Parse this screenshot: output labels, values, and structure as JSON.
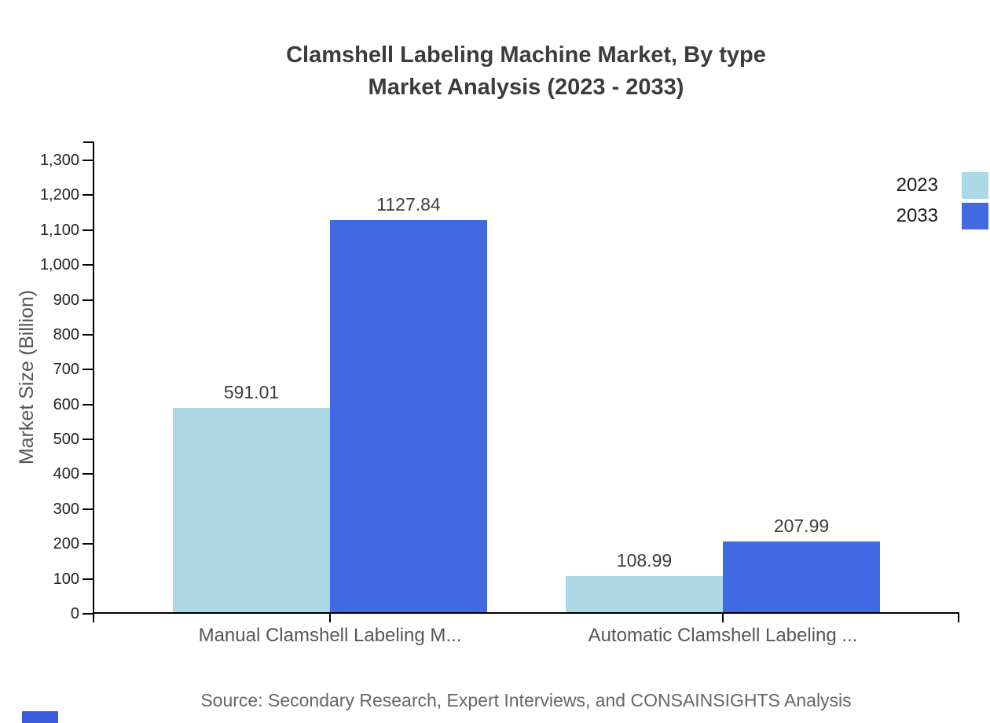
{
  "title": {
    "line1": "Clamshell Labeling Machine Market, By type",
    "line2": "Market Analysis (2023 - 2033)"
  },
  "source_note": "Source: Secondary Research, Expert Interviews, and CONSAINSIGHTS Analysis",
  "colors": {
    "series_2023": "#ADD8E6",
    "series_2033": "#4169E1",
    "axis": "#000000",
    "title_text": "#3C3C3C",
    "category_text": "#555555",
    "tick_text": "#222222",
    "source_text": "#666666",
    "legend_text": "#1A1A1A",
    "logo_blue": "#3B5BDB"
  },
  "legend": {
    "items": [
      {
        "label": "2023",
        "color": "#ADD8E6"
      },
      {
        "label": "2033",
        "color": "#4169E1"
      }
    ]
  },
  "chart_data": {
    "type": "bar",
    "title": "Clamshell Labeling Machine Market, By type Market Analysis (2023 - 2033)",
    "categories": [
      "Manual Clamshell Labeling M...",
      "Automatic Clamshell Labeling ..."
    ],
    "series": [
      {
        "name": "2023",
        "color": "#ADD8E6",
        "values": [
          591.01,
          108.99
        ]
      },
      {
        "name": "2033",
        "color": "#4169E1",
        "values": [
          1127.84,
          207.99
        ]
      }
    ],
    "value_labels": [
      "591.01",
      "1127.84",
      "108.99",
      "207.99"
    ],
    "xlabel": "",
    "ylabel": "Market Size (Billion)",
    "ylim": [
      0,
      1300
    ],
    "ytick_step": 100,
    "ytick_format": "thousands-comma",
    "grid": false,
    "legend_position": "top-right"
  }
}
